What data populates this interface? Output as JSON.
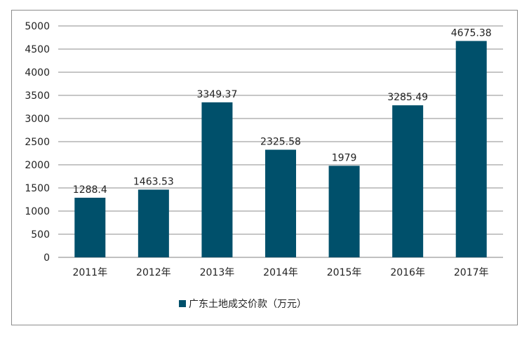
{
  "chart_data": {
    "type": "bar",
    "categories": [
      "2011年",
      "2012年",
      "2013年",
      "2014年",
      "2015年",
      "2016年",
      "2017年"
    ],
    "series": [
      {
        "name": "广东土地成交价款（万元）",
        "values": [
          1288.4,
          1463.53,
          3349.37,
          2325.58,
          1979,
          3285.49,
          4675.38
        ],
        "labels": [
          "1288.4",
          "1463.53",
          "3349.37",
          "2325.58",
          "1979",
          "3285.49",
          "4675.38"
        ]
      }
    ],
    "ylim": [
      0,
      5000
    ],
    "yticks": [
      "0",
      "500",
      "1000",
      "1500",
      "2000",
      "2500",
      "3000",
      "3500",
      "4000",
      "4500",
      "5000"
    ],
    "grid": true,
    "legend_position": "bottom",
    "colors": {
      "bar": "#00506b",
      "grid": "#8c8c8c",
      "axis": "#808080"
    }
  }
}
